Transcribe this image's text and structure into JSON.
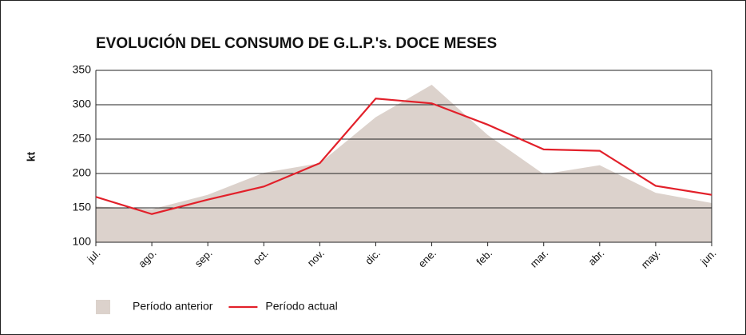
{
  "chart_data": {
    "type": "line",
    "title": "EVOLUCIÓN DEL CONSUMO DE G.L.P.'s. DOCE MESES",
    "y_label": "kt",
    "categories": [
      "jul.",
      "ago.",
      "sep.",
      "oct.",
      "nov.",
      "dic.",
      "ene.",
      "feb.",
      "mar.",
      "abr.",
      "may.",
      "jun."
    ],
    "series": [
      {
        "name": "Período anterior",
        "color": "#dcd2cc",
        "style": "area",
        "values": [
          152,
          148,
          169,
          201,
          215,
          282,
          329,
          256,
          199,
          212,
          172,
          157
        ]
      },
      {
        "name": "Período actual",
        "color": "#e2202a",
        "style": "line",
        "values": [
          166,
          141,
          162,
          181,
          215,
          309,
          302,
          271,
          235,
          233,
          182,
          169
        ]
      }
    ],
    "ylim": [
      100,
      350
    ],
    "yticks": [
      100,
      150,
      200,
      250,
      300,
      350
    ],
    "grid": true,
    "legend": "bottom-left"
  }
}
